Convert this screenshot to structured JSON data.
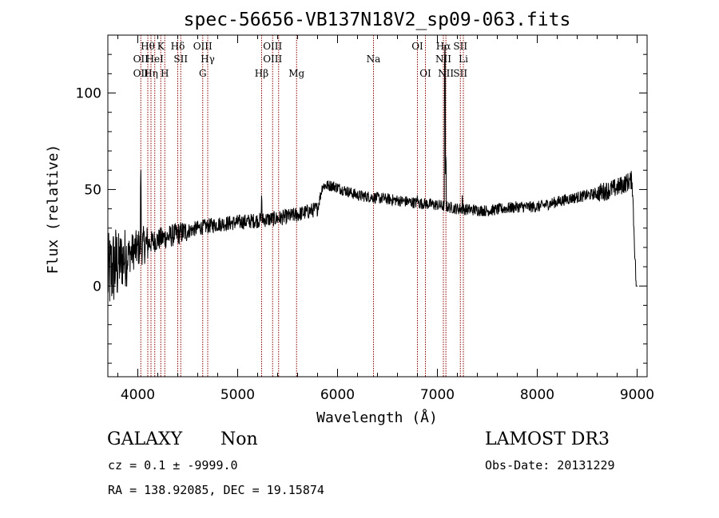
{
  "chart_data": {
    "type": "line",
    "title": "spec-56656-VB137N18V2_sp09-063.fits",
    "xlabel": "Wavelength (Å)",
    "ylabel": "Flux (relative)",
    "xlim": [
      3700,
      9100
    ],
    "ylim": [
      -47,
      130
    ],
    "x_ticks": [
      4000,
      5000,
      6000,
      7000,
      8000,
      9000
    ],
    "y_ticks": [
      0,
      50,
      100
    ],
    "spectrum_knots": [
      [
        3700,
        5
      ],
      [
        3760,
        10
      ],
      [
        3850,
        14
      ],
      [
        3950,
        18
      ],
      [
        4050,
        21
      ],
      [
        4200,
        24
      ],
      [
        4400,
        27
      ],
      [
        4600,
        30
      ],
      [
        4800,
        32
      ],
      [
        5000,
        33
      ],
      [
        5200,
        34
      ],
      [
        5400,
        35
      ],
      [
        5600,
        37
      ],
      [
        5800,
        40
      ],
      [
        5850,
        52
      ],
      [
        5950,
        52
      ],
      [
        6200,
        47
      ],
      [
        6500,
        45
      ],
      [
        6800,
        43
      ],
      [
        7000,
        42
      ],
      [
        7200,
        40
      ],
      [
        7500,
        39
      ],
      [
        7800,
        41
      ],
      [
        8000,
        41
      ],
      [
        8300,
        45
      ],
      [
        8600,
        48
      ],
      [
        8800,
        51
      ],
      [
        8950,
        55
      ],
      [
        8990,
        0
      ]
    ],
    "emission_peaks": [
      {
        "wavelength": 4030,
        "height": 60,
        "label": "Hδ emission"
      },
      {
        "wavelength": 5240,
        "height": 50,
        "label": "Hβ emission"
      },
      {
        "wavelength": 6800,
        "height": 50,
        "label": "OI"
      },
      {
        "wavelength": 7075,
        "height": 125,
        "label": "Hα emission"
      },
      {
        "wavelength": 7085,
        "height": 70,
        "label": "NII emission"
      },
      {
        "wavelength": 7250,
        "height": 50,
        "label": "SII emission"
      }
    ],
    "line_markers": [
      {
        "wavelength": 4030,
        "labels": [
          {
            "text": "OII",
            "row": 2
          },
          {
            "text": "OII",
            "row": 3
          }
        ]
      },
      {
        "wavelength": 4100,
        "labels": [
          {
            "text": "Hθ",
            "row": 1
          }
        ]
      },
      {
        "wavelength": 4132,
        "labels": [
          {
            "text": "Hη",
            "row": 3
          }
        ]
      },
      {
        "wavelength": 4170,
        "labels": [
          {
            "text": "HeI",
            "row": 2
          }
        ]
      },
      {
        "wavelength": 4230,
        "labels": [
          {
            "text": "K",
            "row": 1
          }
        ]
      },
      {
        "wavelength": 4270,
        "labels": [
          {
            "text": "H",
            "row": 3
          }
        ]
      },
      {
        "wavelength": 4400,
        "labels": [
          {
            "text": "Hδ",
            "row": 1
          }
        ]
      },
      {
        "wavelength": 4430,
        "labels": [
          {
            "text": "SII",
            "row": 2
          }
        ]
      },
      {
        "wavelength": 4650,
        "labels": [
          {
            "text": "OIII",
            "row": 1
          },
          {
            "text": "G",
            "row": 3
          }
        ]
      },
      {
        "wavelength": 4700,
        "labels": [
          {
            "text": "Hγ",
            "row": 2
          }
        ]
      },
      {
        "wavelength": 5240,
        "labels": [
          {
            "text": "Hβ",
            "row": 3
          }
        ]
      },
      {
        "wavelength": 5350,
        "labels": [
          {
            "text": "OIII",
            "row": 1
          },
          {
            "text": "OIII",
            "row": 2
          }
        ]
      },
      {
        "wavelength": 5410,
        "labels": []
      },
      {
        "wavelength": 5590,
        "labels": [
          {
            "text": "Mg",
            "row": 3
          }
        ]
      },
      {
        "wavelength": 6360,
        "labels": [
          {
            "text": "Na",
            "row": 2
          }
        ]
      },
      {
        "wavelength": 6800,
        "labels": [
          {
            "text": "OI",
            "row": 1
          }
        ]
      },
      {
        "wavelength": 6880,
        "labels": [
          {
            "text": "OI",
            "row": 3
          }
        ]
      },
      {
        "wavelength": 7060,
        "labels": [
          {
            "text": "Hα",
            "row": 1
          },
          {
            "text": "NII",
            "row": 2
          }
        ]
      },
      {
        "wavelength": 7085,
        "labels": [
          {
            "text": "NII",
            "row": 3
          }
        ]
      },
      {
        "wavelength": 7230,
        "labels": [
          {
            "text": "SII",
            "row": 1
          },
          {
            "text": "SII",
            "row": 3
          }
        ]
      },
      {
        "wavelength": 7260,
        "labels": [
          {
            "text": "Li",
            "row": 2
          }
        ]
      }
    ],
    "marker_color": "#8b0000",
    "grid": false
  },
  "info": {
    "object_class": "GALAXY",
    "subclass": "Non",
    "survey": "LAMOST DR3",
    "redshift": "cz = 0.1 ± -9999.0",
    "obs_date": "Obs-Date: 20131229",
    "coords": "RA = 138.92085, DEC =  19.15874"
  }
}
